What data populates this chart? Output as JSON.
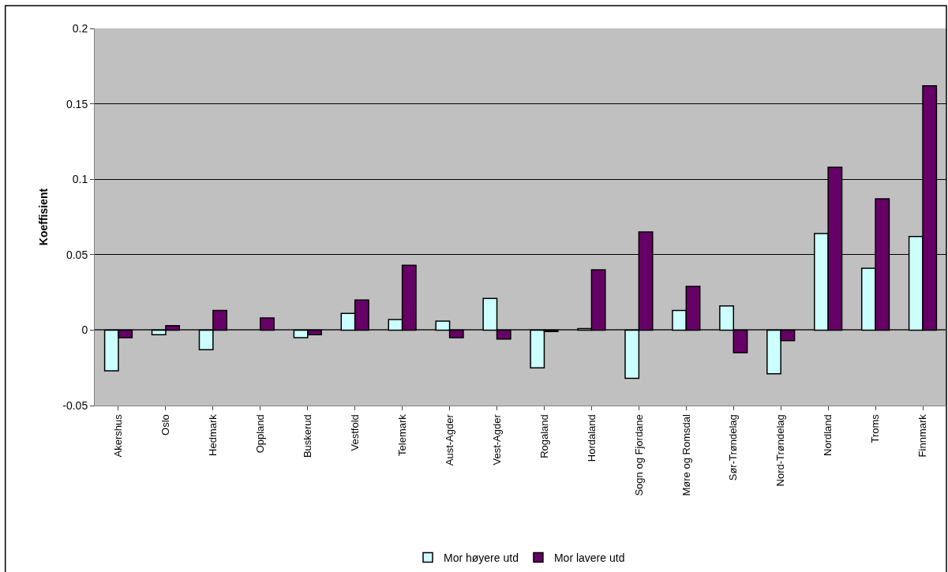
{
  "chart_data": {
    "type": "bar",
    "ylabel": "Koeffisient",
    "categories": [
      "Akershus",
      "Oslo",
      "Hedmark",
      "Oppland",
      "Buskerud",
      "Vestfold",
      "Telemark",
      "Aust-Agder",
      "Vest-Agder",
      "Rogaland",
      "Hordaland",
      "Sogn og Fjordane",
      "Møre og Romsdal",
      "Sør-Trøndelag",
      "Nord-Trøndelag",
      "Nordland",
      "Troms",
      "Finnmark"
    ],
    "series": [
      {
        "name": "Mor høyere utd",
        "color": "#ccffff",
        "values": [
          -0.027,
          -0.003,
          -0.013,
          null,
          -0.005,
          0.011,
          0.007,
          0.006,
          0.021,
          -0.025,
          0.001,
          -0.032,
          0.013,
          0.016,
          -0.029,
          0.064,
          0.041,
          0.062
        ]
      },
      {
        "name": "Mor lavere utd",
        "color": "#660066",
        "values": [
          -0.005,
          0.003,
          0.013,
          0.008,
          -0.003,
          0.02,
          0.043,
          -0.005,
          -0.006,
          -0.001,
          0.04,
          0.065,
          0.029,
          -0.015,
          -0.007,
          0.108,
          0.087,
          0.162
        ]
      }
    ],
    "ylim": [
      -0.05,
      0.2
    ],
    "yticks": [
      -0.05,
      0,
      0.05,
      0.1,
      0.15,
      0.2
    ],
    "grid": "y",
    "legend": "bottom"
  }
}
